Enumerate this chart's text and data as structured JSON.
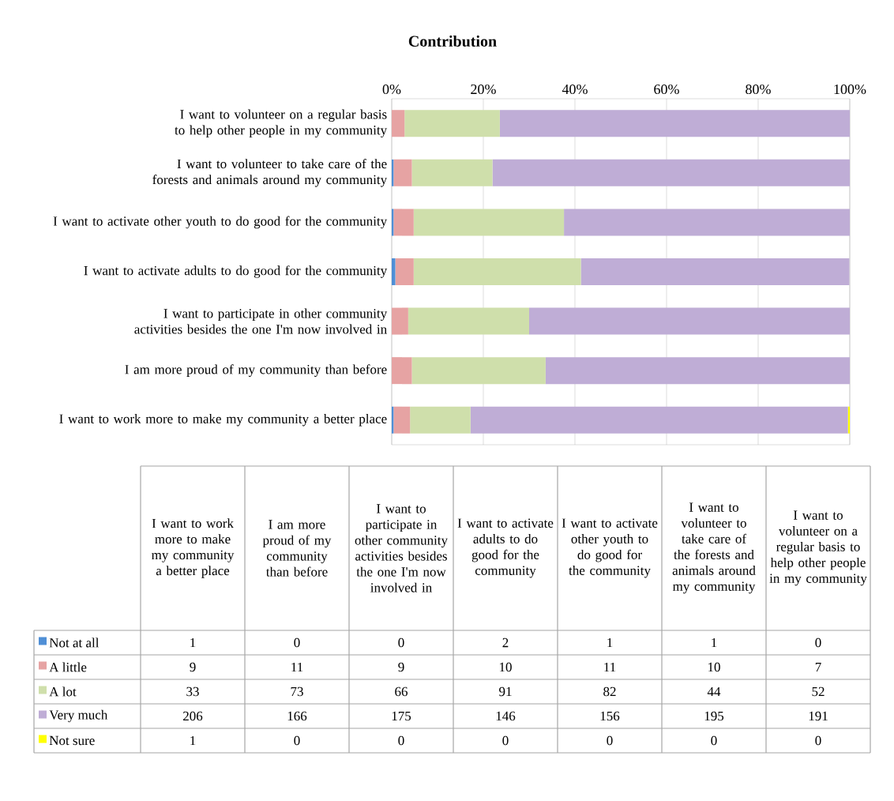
{
  "chart_data": [
    {
      "type": "bar",
      "orientation": "horizontal",
      "stacked": true,
      "title": "Contribution",
      "categories": [
        "I want to volunteer on a regular basis to help other people in my community",
        "I want to volunteer to take care of the forests and animals around my community",
        "I want to activate other youth to do good for the community",
        "I want to activate adults to do good for the community",
        "I want to participate in other community activities besides the one I'm now involved in",
        "I am more proud of my community than before",
        "I want to work more to make my community a better place"
      ],
      "series": [
        {
          "color": "#4f8fd6",
          "values": [
            0,
            0.4,
            0.4,
            0.8,
            0,
            0,
            0.4
          ]
        },
        {
          "color": "#e6a3a3",
          "values": [
            2.8,
            4,
            4.4,
            4,
            3.6,
            4.4,
            3.6
          ]
        },
        {
          "color": "#cfdfab",
          "values": [
            20.8,
            17.6,
            32.8,
            36.5,
            26.4,
            29.2,
            13.2
          ]
        },
        {
          "color": "#bfadd6",
          "values": [
            76.4,
            78,
            62.4,
            58.6,
            70,
            66.4,
            82.4
          ]
        },
        {
          "color": "#ffff00",
          "values": [
            0,
            0,
            0,
            0,
            0,
            0,
            0.4
          ]
        }
      ],
      "xlim": [
        0,
        100
      ],
      "xticks": [
        {
          "value": 0,
          "label": "0%"
        },
        {
          "value": 20,
          "label": "20%"
        },
        {
          "value": 40,
          "label": "40%"
        },
        {
          "value": 60,
          "label": "60%"
        },
        {
          "value": 80,
          "label": "80%"
        },
        {
          "value": 100,
          "label": "100%"
        }
      ],
      "grid": "x"
    },
    {
      "type": "other",
      "categories": [
        "I want to work more to make my community a better place",
        "I am more proud of my community than before",
        "I want to participate in other community activities besides the one I'm now involved in",
        "I want to activate adults to do good for the community",
        "I want to activate other youth to do good for the community",
        "I want to volunteer to take care of the forests and animals around my community",
        "I want to volunteer on a regular basis to help other people in my community"
      ],
      "series": [
        {
          "name": "Not at all",
          "color": "#4f8fd6",
          "values": [
            1,
            0,
            0,
            2,
            1,
            1,
            0
          ]
        },
        {
          "name": "A little",
          "color": "#e6a3a3",
          "values": [
            9,
            11,
            9,
            10,
            11,
            10,
            7
          ]
        },
        {
          "name": "A lot",
          "color": "#cfdfab",
          "values": [
            33,
            73,
            66,
            91,
            82,
            44,
            52
          ]
        },
        {
          "name": "Very much",
          "color": "#bfadd6",
          "values": [
            206,
            166,
            175,
            146,
            156,
            195,
            191
          ]
        },
        {
          "name": "Not sure",
          "color": "#ffff00",
          "values": [
            1,
            0,
            0,
            0,
            0,
            0,
            0
          ]
        }
      ],
      "data_labels": true
    }
  ]
}
